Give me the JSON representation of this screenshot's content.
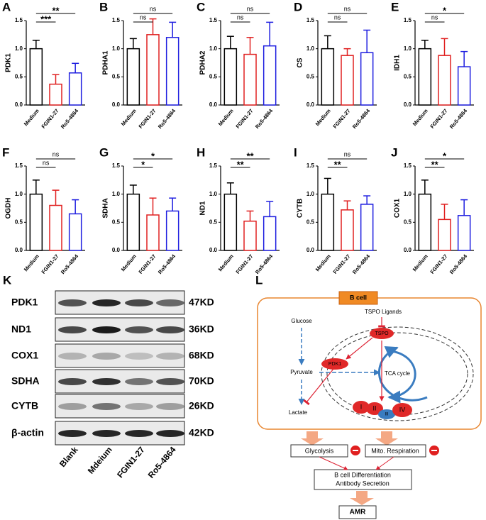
{
  "chart_data": [
    {
      "type": "bar",
      "panel": "A",
      "ylabel": "PDK1",
      "categories": [
        "Medium",
        "FGIN1-27",
        "Ro5-4864"
      ],
      "values": [
        1.0,
        0.37,
        0.57
      ],
      "errors": [
        0.15,
        0.17,
        0.17
      ],
      "colors": [
        "#000000",
        "#e02020",
        "#1f1fe0"
      ],
      "significance": [
        null,
        "***",
        "**"
      ],
      "ylim": [
        0,
        1.5
      ],
      "yticks": [
        {
          "value": 0,
          "label": "0.0"
        },
        {
          "value": 0.5,
          "label": "0.5"
        },
        {
          "value": 1,
          "label": "1.0"
        },
        {
          "value": 1.5,
          "label": "1.5"
        }
      ]
    },
    {
      "type": "bar",
      "panel": "B",
      "ylabel": "PDHA1",
      "categories": [
        "Medium",
        "FGIN1-27",
        "Ro5-4864"
      ],
      "values": [
        1.0,
        1.25,
        1.2
      ],
      "errors": [
        0.18,
        0.28,
        0.27
      ],
      "colors": [
        "#000000",
        "#e02020",
        "#1f1fe0"
      ],
      "significance": [
        null,
        "ns",
        "ns"
      ],
      "ylim": [
        0,
        1.5
      ],
      "yticks": [
        {
          "value": 0,
          "label": "0.0"
        },
        {
          "value": 0.5,
          "label": "0.5"
        },
        {
          "value": 1,
          "label": "1.0"
        },
        {
          "value": 1.5,
          "label": "1.5"
        }
      ]
    },
    {
      "type": "bar",
      "panel": "C",
      "ylabel": "PDHA2",
      "categories": [
        "Medium",
        "FGIN1-27",
        "Ro5-4864"
      ],
      "values": [
        1.0,
        0.9,
        1.05
      ],
      "errors": [
        0.22,
        0.3,
        0.42
      ],
      "colors": [
        "#000000",
        "#e02020",
        "#1f1fe0"
      ],
      "significance": [
        null,
        "ns",
        "ns"
      ],
      "ylim": [
        0,
        1.5
      ],
      "yticks": [
        {
          "value": 0,
          "label": "0.0"
        },
        {
          "value": 0.5,
          "label": "0.5"
        },
        {
          "value": 1,
          "label": "1.0"
        },
        {
          "value": 1.5,
          "label": "1.5"
        }
      ]
    },
    {
      "type": "bar",
      "panel": "D",
      "ylabel": "CS",
      "categories": [
        "Medium",
        "FGIN1-27",
        "Ro5-4864"
      ],
      "values": [
        1.0,
        0.88,
        0.93
      ],
      "errors": [
        0.23,
        0.12,
        0.4
      ],
      "colors": [
        "#000000",
        "#e02020",
        "#1f1fe0"
      ],
      "significance": [
        null,
        "ns",
        "ns"
      ],
      "ylim": [
        0,
        1.5
      ],
      "yticks": [
        {
          "value": 0,
          "label": "0.0"
        },
        {
          "value": 0.5,
          "label": "0.5"
        },
        {
          "value": 1,
          "label": "1.0"
        },
        {
          "value": 1.5,
          "label": "1.5"
        }
      ]
    },
    {
      "type": "bar",
      "panel": "E",
      "ylabel": "IDH1",
      "categories": [
        "Medium",
        "FGIN1-27",
        "Ro5-4864"
      ],
      "values": [
        1.0,
        0.88,
        0.68
      ],
      "errors": [
        0.15,
        0.3,
        0.27
      ],
      "colors": [
        "#000000",
        "#e02020",
        "#1f1fe0"
      ],
      "significance": [
        null,
        "ns",
        "*"
      ],
      "ylim": [
        0,
        1.5
      ],
      "yticks": [
        {
          "value": 0,
          "label": "0.0"
        },
        {
          "value": 0.5,
          "label": "0.5"
        },
        {
          "value": 1,
          "label": "1.0"
        },
        {
          "value": 1.5,
          "label": "1.5"
        }
      ]
    },
    {
      "type": "bar",
      "panel": "F",
      "ylabel": "OGDH",
      "categories": [
        "Medium",
        "FGIN1-27",
        "Ro5-4864"
      ],
      "values": [
        1.0,
        0.8,
        0.65
      ],
      "errors": [
        0.25,
        0.27,
        0.25
      ],
      "colors": [
        "#000000",
        "#e02020",
        "#1f1fe0"
      ],
      "significance": [
        null,
        "ns",
        "ns"
      ],
      "ylim": [
        0,
        1.5
      ],
      "yticks": [
        {
          "value": 0,
          "label": "0.0"
        },
        {
          "value": 0.5,
          "label": "0.5"
        },
        {
          "value": 1,
          "label": "1.0"
        },
        {
          "value": 1.5,
          "label": "1.5"
        }
      ]
    },
    {
      "type": "bar",
      "panel": "G",
      "ylabel": "SDHA",
      "categories": [
        "Medium",
        "FGIN1-27",
        "Ro5-4864"
      ],
      "values": [
        1.0,
        0.63,
        0.7
      ],
      "errors": [
        0.16,
        0.3,
        0.23
      ],
      "colors": [
        "#000000",
        "#e02020",
        "#1f1fe0"
      ],
      "significance": [
        null,
        "*",
        "*"
      ],
      "ylim": [
        0,
        1.5
      ],
      "yticks": [
        {
          "value": 0,
          "label": "0.0"
        },
        {
          "value": 0.5,
          "label": "0.5"
        },
        {
          "value": 1,
          "label": "1.0"
        },
        {
          "value": 1.5,
          "label": "1.5"
        }
      ]
    },
    {
      "type": "bar",
      "panel": "H",
      "ylabel": "ND1",
      "categories": [
        "Medium",
        "FGIN1-27",
        "Ro5-4864"
      ],
      "values": [
        1.0,
        0.52,
        0.6
      ],
      "errors": [
        0.2,
        0.18,
        0.27
      ],
      "colors": [
        "#000000",
        "#e02020",
        "#1f1fe0"
      ],
      "significance": [
        null,
        "**",
        "**"
      ],
      "ylim": [
        0,
        1.5
      ],
      "yticks": [
        {
          "value": 0,
          "label": "0.0"
        },
        {
          "value": 0.5,
          "label": "0.5"
        },
        {
          "value": 1,
          "label": "1.0"
        },
        {
          "value": 1.5,
          "label": "1.5"
        }
      ]
    },
    {
      "type": "bar",
      "panel": "I",
      "ylabel": "CYTB",
      "categories": [
        "Medium",
        "FGIN1-27",
        "Ro5-4864"
      ],
      "values": [
        1.0,
        0.72,
        0.82
      ],
      "errors": [
        0.28,
        0.16,
        0.15
      ],
      "colors": [
        "#000000",
        "#e02020",
        "#1f1fe0"
      ],
      "significance": [
        null,
        "**",
        "ns"
      ],
      "ylim": [
        0,
        1.5
      ],
      "yticks": [
        {
          "value": 0,
          "label": "0.0"
        },
        {
          "value": 0.5,
          "label": "0.5"
        },
        {
          "value": 1,
          "label": "1.0"
        },
        {
          "value": 1.5,
          "label": "1.5"
        }
      ]
    },
    {
      "type": "bar",
      "panel": "J",
      "ylabel": "COX1",
      "categories": [
        "Medium",
        "FGIN1-27",
        "Ro5-4864"
      ],
      "values": [
        1.0,
        0.55,
        0.62
      ],
      "errors": [
        0.25,
        0.27,
        0.28
      ],
      "colors": [
        "#000000",
        "#e02020",
        "#1f1fe0"
      ],
      "significance": [
        null,
        "**",
        "*"
      ],
      "ylim": [
        0,
        1.5
      ],
      "yticks": [
        {
          "value": 0,
          "label": "0.0"
        },
        {
          "value": 0.5,
          "label": "0.5"
        },
        {
          "value": 1,
          "label": "1.0"
        },
        {
          "value": 1.5,
          "label": "1.5"
        }
      ]
    }
  ],
  "blot": {
    "panel": "K",
    "rows": [
      {
        "protein": "PDK1",
        "size": "47KD"
      },
      {
        "protein": "ND1",
        "size": "36KD"
      },
      {
        "protein": "COX1",
        "size": "68KD"
      },
      {
        "protein": "SDHA",
        "size": "70KD"
      },
      {
        "protein": "CYTB",
        "size": "26KD"
      },
      {
        "protein": "β-actin",
        "size": "42KD"
      }
    ],
    "lanes": [
      "Blank",
      "Mdeium",
      "FGIN1-27",
      "Ro5-4864"
    ]
  },
  "diagram": {
    "panel": "L",
    "cell": "B cell",
    "ligands": "TSPO Ligands",
    "glucose": "Glucose",
    "tspo": "TSPO",
    "pdk1": "PDK1",
    "pyruvate": "Pyruvate",
    "tca": "TCA cycle",
    "lactate": "Lactate",
    "complexes": [
      "I",
      "II",
      "III",
      "IV"
    ],
    "glycolysis": "Glycolysis",
    "respiration": "Mito. Respiration",
    "outcome": [
      "B cell Differentiation",
      "Antibody Secretion"
    ],
    "result": "AMR"
  }
}
